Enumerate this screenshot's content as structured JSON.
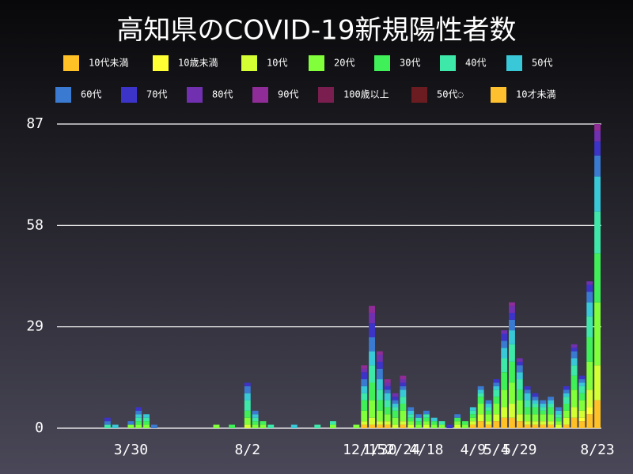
{
  "chart_data": {
    "type": "stacked-bar",
    "title": "高知県のCOVID-19新規陽性者数",
    "categories": [
      null,
      null,
      null,
      null,
      null,
      null,
      null,
      null,
      null,
      "3/30",
      null,
      null,
      null,
      null,
      null,
      null,
      null,
      null,
      null,
      null,
      null,
      null,
      null,
      null,
      "8/2",
      null,
      null,
      null,
      null,
      null,
      null,
      null,
      null,
      null,
      null,
      null,
      null,
      null,
      null,
      "12/15",
      null,
      "1/30",
      null,
      null,
      "2/24",
      null,
      null,
      "4/18",
      null,
      null,
      null,
      null,
      null,
      "4/9",
      null,
      null,
      "5/4",
      null,
      null,
      "5/29",
      null,
      null,
      null,
      null,
      null,
      null,
      null,
      null,
      null,
      "8/23"
    ],
    "ylim": [
      0,
      87
    ],
    "yticks": [
      0,
      29,
      58,
      87
    ],
    "grid": true,
    "series": [
      {
        "name": "10代未満",
        "color": "#ffc125",
        "values": [
          0,
          0,
          0,
          0,
          0,
          0,
          0,
          0,
          0,
          0,
          0,
          0,
          0,
          0,
          0,
          0,
          0,
          0,
          0,
          0,
          0,
          0,
          0,
          0,
          0,
          0,
          0,
          0,
          0,
          0,
          0,
          0,
          0,
          0,
          0,
          0,
          0,
          0,
          0,
          1,
          1,
          1,
          1,
          0,
          1,
          0,
          0,
          0,
          0,
          0,
          0,
          0,
          0,
          1,
          2,
          1,
          2,
          3,
          3,
          2,
          1,
          1,
          1,
          1,
          0,
          1,
          3,
          2,
          4,
          8
        ]
      },
      {
        "name": "10歳未満",
        "color": "#ffff33",
        "values": [
          0,
          0,
          0,
          0,
          0,
          0,
          0,
          0,
          0,
          0,
          0,
          0,
          0,
          0,
          0,
          0,
          0,
          0,
          0,
          0,
          0,
          0,
          0,
          0,
          0,
          0,
          0,
          0,
          0,
          0,
          0,
          0,
          0,
          0,
          0,
          0,
          0,
          0,
          0,
          0,
          0,
          0,
          0,
          0,
          0,
          0,
          0,
          0,
          0,
          0,
          0,
          0,
          0,
          0,
          0,
          0,
          0,
          0,
          0,
          0,
          0,
          0,
          0,
          0,
          0,
          0,
          0,
          1,
          2,
          0
        ]
      },
      {
        "name": "10代",
        "color": "#d4ff33",
        "values": [
          0,
          0,
          0,
          0,
          0,
          0,
          0,
          0,
          0,
          0,
          0,
          0,
          0,
          0,
          0,
          0,
          0,
          0,
          0,
          0,
          0,
          0,
          0,
          0,
          1,
          0,
          0,
          0,
          0,
          0,
          0,
          0,
          0,
          0,
          0,
          0,
          0,
          0,
          0,
          1,
          2,
          1,
          1,
          1,
          1,
          1,
          0,
          1,
          0,
          0,
          0,
          1,
          0,
          1,
          2,
          1,
          2,
          3,
          4,
          2,
          1,
          1,
          1,
          1,
          1,
          2,
          3,
          2,
          5,
          10
        ]
      },
      {
        "name": "20代",
        "color": "#80ff3a",
        "values": [
          0,
          0,
          0,
          0,
          0,
          0,
          0,
          0,
          0,
          1,
          1,
          1,
          0,
          0,
          0,
          0,
          0,
          0,
          0,
          0,
          1,
          0,
          0,
          0,
          2,
          1,
          1,
          0,
          0,
          0,
          0,
          0,
          0,
          0,
          0,
          1,
          0,
          0,
          1,
          3,
          5,
          3,
          2,
          2,
          3,
          1,
          1,
          1,
          1,
          1,
          0,
          1,
          1,
          1,
          3,
          2,
          3,
          5,
          6,
          4,
          2,
          2,
          2,
          2,
          1,
          2,
          5,
          3,
          8,
          18
        ]
      },
      {
        "name": "30代",
        "color": "#40f058",
        "values": [
          0,
          0,
          0,
          0,
          0,
          0,
          0,
          0,
          0,
          0,
          1,
          1,
          0,
          0,
          0,
          0,
          0,
          0,
          0,
          0,
          0,
          0,
          1,
          0,
          2,
          1,
          1,
          0,
          0,
          0,
          0,
          0,
          0,
          0,
          0,
          0,
          0,
          0,
          0,
          3,
          5,
          3,
          2,
          2,
          2,
          1,
          1,
          1,
          1,
          0,
          0,
          1,
          1,
          1,
          2,
          1,
          2,
          5,
          6,
          3,
          2,
          2,
          1,
          2,
          1,
          2,
          4,
          2,
          7,
          14
        ]
      },
      {
        "name": "40代",
        "color": "#3ee8a8",
        "values": [
          0,
          0,
          0,
          0,
          0,
          0,
          1,
          0,
          0,
          0,
          1,
          1,
          0,
          0,
          0,
          0,
          0,
          0,
          0,
          0,
          0,
          0,
          0,
          0,
          3,
          1,
          0,
          1,
          0,
          0,
          0,
          0,
          0,
          1,
          0,
          1,
          0,
          0,
          0,
          2,
          5,
          3,
          2,
          1,
          2,
          1,
          1,
          1,
          0,
          1,
          0,
          0,
          0,
          1,
          1,
          1,
          2,
          4,
          5,
          3,
          2,
          1,
          1,
          1,
          1,
          2,
          3,
          2,
          6,
          12
        ]
      },
      {
        "name": "50代",
        "color": "#38c8d8",
        "values": [
          0,
          0,
          0,
          0,
          0,
          0,
          0,
          1,
          0,
          0,
          1,
          1,
          0,
          0,
          0,
          0,
          0,
          0,
          0,
          0,
          0,
          0,
          0,
          0,
          2,
          1,
          0,
          0,
          0,
          0,
          1,
          0,
          0,
          0,
          0,
          0,
          0,
          0,
          0,
          2,
          4,
          3,
          2,
          1,
          2,
          1,
          0,
          0,
          1,
          0,
          0,
          0,
          0,
          1,
          1,
          1,
          1,
          3,
          4,
          2,
          2,
          1,
          1,
          1,
          1,
          1,
          2,
          1,
          4,
          10
        ]
      },
      {
        "name": "60代",
        "color": "#3a7ad0",
        "values": [
          0,
          0,
          0,
          0,
          0,
          0,
          1,
          0,
          0,
          1,
          1,
          0,
          1,
          0,
          0,
          0,
          0,
          0,
          0,
          0,
          0,
          0,
          0,
          0,
          2,
          1,
          0,
          0,
          0,
          0,
          0,
          0,
          0,
          0,
          0,
          0,
          0,
          0,
          0,
          2,
          4,
          3,
          1,
          1,
          1,
          1,
          1,
          1,
          0,
          0,
          0,
          1,
          0,
          0,
          1,
          1,
          1,
          2,
          3,
          2,
          1,
          1,
          1,
          1,
          1,
          1,
          2,
          1,
          3,
          6
        ]
      },
      {
        "name": "70代",
        "color": "#3c34c8",
        "values": [
          0,
          0,
          0,
          0,
          0,
          0,
          1,
          0,
          0,
          0,
          1,
          0,
          0,
          0,
          0,
          0,
          0,
          0,
          0,
          0,
          0,
          0,
          0,
          0,
          1,
          0,
          0,
          0,
          0,
          0,
          0,
          0,
          0,
          0,
          0,
          0,
          0,
          0,
          0,
          2,
          4,
          2,
          1,
          1,
          1,
          0,
          0,
          0,
          0,
          0,
          1,
          0,
          0,
          0,
          0,
          0,
          1,
          2,
          2,
          1,
          1,
          1,
          0,
          0,
          0,
          1,
          1,
          1,
          2,
          4
        ]
      },
      {
        "name": "80代",
        "color": "#7030b0",
        "values": [
          0,
          0,
          0,
          0,
          0,
          0,
          0,
          0,
          0,
          0,
          0,
          0,
          0,
          0,
          0,
          0,
          0,
          0,
          0,
          0,
          0,
          0,
          0,
          0,
          0,
          0,
          0,
          0,
          0,
          0,
          0,
          0,
          0,
          0,
          0,
          0,
          0,
          0,
          0,
          1,
          3,
          2,
          1,
          1,
          1,
          0,
          0,
          0,
          0,
          0,
          0,
          0,
          0,
          0,
          0,
          0,
          0,
          1,
          2,
          1,
          0,
          0,
          0,
          0,
          0,
          0,
          1,
          0,
          1,
          3
        ]
      },
      {
        "name": "90代",
        "color": "#902c98",
        "values": [
          0,
          0,
          0,
          0,
          0,
          0,
          0,
          0,
          0,
          0,
          0,
          0,
          0,
          0,
          0,
          0,
          0,
          0,
          0,
          0,
          0,
          0,
          0,
          0,
          0,
          0,
          0,
          0,
          0,
          0,
          0,
          0,
          0,
          0,
          0,
          0,
          0,
          0,
          0,
          1,
          2,
          1,
          1,
          0,
          1,
          0,
          0,
          0,
          0,
          0,
          0,
          0,
          0,
          0,
          0,
          0,
          0,
          0,
          1,
          0,
          0,
          0,
          0,
          0,
          0,
          0,
          0,
          0,
          0,
          2
        ]
      },
      {
        "name": "100歳以上",
        "color": "#7a1e50",
        "values": [
          0,
          0,
          0,
          0,
          0,
          0,
          0,
          0,
          0,
          0,
          0,
          0,
          0,
          0,
          0,
          0,
          0,
          0,
          0,
          0,
          0,
          0,
          0,
          0,
          0,
          0,
          0,
          0,
          0,
          0,
          0,
          0,
          0,
          0,
          0,
          0,
          0,
          0,
          0,
          0,
          0,
          0,
          0,
          0,
          0,
          0,
          0,
          0,
          0,
          0,
          0,
          0,
          0,
          0,
          0,
          0,
          0,
          0,
          0,
          0,
          0,
          0,
          0,
          0,
          0,
          0,
          0,
          0,
          0,
          0
        ]
      },
      {
        "name": "50代◌",
        "color": "#6a1c20",
        "values": [
          0,
          0,
          0,
          0,
          0,
          0,
          0,
          0,
          0,
          0,
          0,
          0,
          0,
          0,
          0,
          0,
          0,
          0,
          0,
          0,
          0,
          0,
          0,
          0,
          0,
          0,
          0,
          0,
          0,
          0,
          0,
          0,
          0,
          0,
          0,
          0,
          0,
          0,
          0,
          0,
          0,
          0,
          0,
          0,
          0,
          0,
          0,
          0,
          0,
          0,
          0,
          0,
          0,
          0,
          0,
          0,
          0,
          0,
          0,
          0,
          0,
          0,
          0,
          0,
          0,
          0,
          0,
          0,
          0,
          0
        ]
      },
      {
        "name": "10才未満",
        "color": "#ffc030",
        "values": [
          0,
          0,
          0,
          0,
          0,
          0,
          0,
          0,
          0,
          0,
          0,
          0,
          0,
          0,
          0,
          0,
          0,
          0,
          0,
          0,
          0,
          0,
          0,
          0,
          0,
          0,
          0,
          0,
          0,
          0,
          0,
          0,
          0,
          0,
          0,
          0,
          0,
          0,
          0,
          0,
          0,
          0,
          0,
          0,
          0,
          0,
          0,
          0,
          0,
          0,
          0,
          0,
          0,
          0,
          0,
          0,
          0,
          0,
          0,
          0,
          0,
          0,
          0,
          0,
          0,
          0,
          0,
          0,
          0,
          0
        ]
      }
    ]
  }
}
